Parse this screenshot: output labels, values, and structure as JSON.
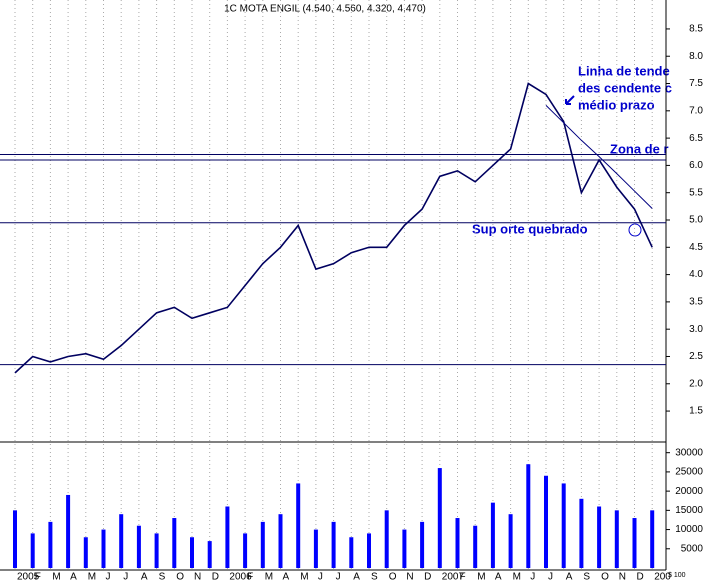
{
  "chart_data": {
    "type": "line",
    "title": "1C MOTA ENGIL (4.540, 4.560, 4.320, 4.470)",
    "categories": [
      "2005",
      "F",
      "M",
      "A",
      "M",
      "J",
      "J",
      "A",
      "S",
      "O",
      "N",
      "D",
      "2006",
      "F",
      "M",
      "A",
      "M",
      "J",
      "J",
      "A",
      "S",
      "O",
      "N",
      "D",
      "2007",
      "F",
      "M",
      "A",
      "M",
      "J",
      "J",
      "A",
      "S",
      "O",
      "N",
      "D",
      "200"
    ],
    "series": [
      {
        "color": "#000060",
        "values": [
          2.2,
          2.5,
          2.4,
          2.5,
          2.55,
          2.45,
          2.7,
          3.0,
          3.3,
          3.4,
          3.2,
          3.3,
          3.4,
          3.8,
          4.2,
          4.5,
          4.9,
          4.1,
          4.2,
          4.4,
          4.5,
          4.5,
          4.9,
          5.2,
          5.8,
          5.9,
          5.7,
          6.0,
          6.3,
          7.5,
          7.3,
          6.8,
          5.5,
          6.1,
          5.6,
          5.2,
          4.5
        ]
      },
      {
        "color": "#000080",
        "values": [
          null,
          null,
          null,
          null,
          null,
          null,
          null,
          null,
          null,
          null,
          null,
          null,
          null,
          null,
          null,
          null,
          null,
          null,
          null,
          null,
          null,
          null,
          null,
          null,
          null,
          null,
          null,
          null,
          null,
          null,
          7.1,
          6.78,
          6.46,
          6.16,
          5.85,
          5.53,
          5.21
        ]
      }
    ],
    "ylim": [
      0.97,
      9.03
    ],
    "yticks": [
      1.5,
      {
        "value": 2,
        "label": "2.0"
      },
      2.5,
      {
        "value": 3,
        "label": "3.0"
      },
      3.5,
      {
        "value": 4,
        "label": "4.0"
      },
      4.5,
      {
        "value": 5,
        "label": "5.0"
      },
      5.5,
      {
        "value": 6,
        "label": "6.0"
      },
      6.5,
      {
        "value": 7,
        "label": "7.0"
      },
      7.5,
      {
        "value": 8,
        "label": "8.0"
      },
      8.5
    ],
    "hlines": [
      6.2,
      6.1,
      4.95,
      2.35
    ],
    "volume": {
      "color": "#0000ff",
      "unit": "$ 100",
      "values": [
        15000,
        9000,
        12000,
        19000,
        8000,
        10000,
        14000,
        11000,
        9000,
        13000,
        8000,
        7000,
        16000,
        9000,
        12000,
        14000,
        22000,
        10000,
        12000,
        8000,
        9000,
        15000,
        10000,
        12000,
        26000,
        13000,
        11000,
        17000,
        14000,
        27000,
        24000,
        22000,
        18000,
        16000,
        15000,
        13000,
        15000
      ],
      "ylim": [
        0,
        32000
      ],
      "yticks": [
        5000,
        10000,
        15000,
        20000,
        25000,
        30000
      ]
    },
    "annotations": [
      "Linha de tende",
      "des cendente c",
      "médio prazo",
      "Zona de r",
      "Sup orte quebrado"
    ]
  }
}
